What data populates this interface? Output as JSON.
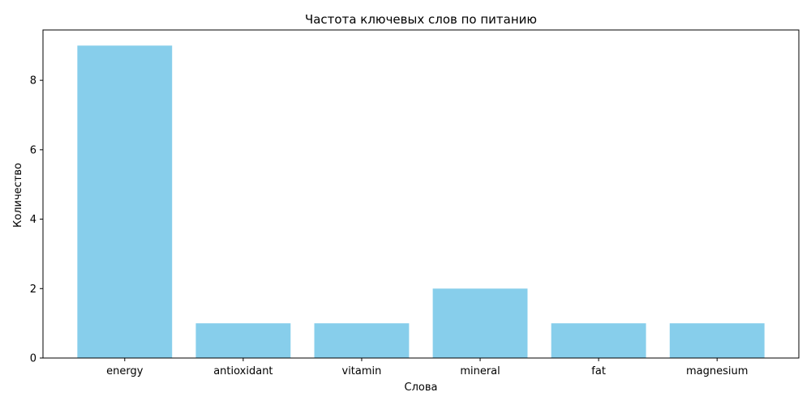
{
  "chart_data": {
    "type": "bar",
    "title": "Частота ключевых слов по питанию",
    "xlabel": "Слова",
    "ylabel": "Количество",
    "categories": [
      "energy",
      "antioxidant",
      "vitamin",
      "mineral",
      "fat",
      "magnesium"
    ],
    "values": [
      9,
      1,
      1,
      2,
      1,
      1
    ],
    "ylim": [
      0,
      9.45
    ],
    "yticks": [
      0,
      2,
      4,
      6,
      8
    ],
    "bar_color": "#87ceeb",
    "grid": false
  }
}
